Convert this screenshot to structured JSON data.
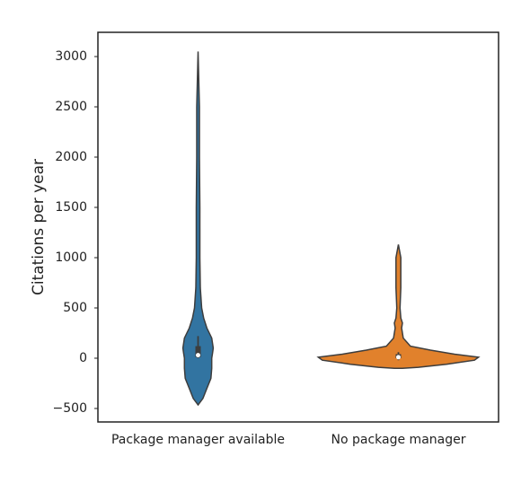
{
  "chart_data": {
    "type": "violin",
    "ylabel": "Citations per year",
    "categories": [
      "Package manager available",
      "No package manager"
    ],
    "ylim": [
      -634,
      3241
    ],
    "yticks": [
      {
        "value": -500,
        "label": "−500"
      },
      0,
      500,
      1000,
      1500,
      2000,
      2500,
      3000
    ],
    "grid": false,
    "violins": [
      {
        "color": "#3274a1",
        "y": [
          -464,
          -400,
          -300,
          -200,
          -100,
          0,
          50,
          100,
          200,
          300,
          400,
          500,
          700,
          1000,
          1500,
          2000,
          2500,
          3050
        ],
        "density": [
          0,
          0.06,
          0.11,
          0.16,
          0.17,
          0.17,
          0.18,
          0.19,
          0.17,
          0.11,
          0.07,
          0.045,
          0.028,
          0.022,
          0.022,
          0.017,
          0.017,
          0
        ],
        "whisker_low": 0,
        "q1": 10,
        "median": 30,
        "q3": 120,
        "whisker_high": 220
      },
      {
        "color": "#e1812c",
        "y": [
          -100,
          -90,
          -60,
          -20,
          10,
          40,
          80,
          120,
          200,
          300,
          350,
          400,
          500,
          700,
          900,
          1000,
          1130
        ],
        "density": [
          0.05,
          0.25,
          0.6,
          0.95,
          1.0,
          0.7,
          0.4,
          0.15,
          0.06,
          0.04,
          0.05,
          0.03,
          0.02,
          0.03,
          0.03,
          0.03,
          0
        ],
        "whisker_low": -20,
        "q1": 0,
        "median": 10,
        "q3": 40,
        "whisker_high": 60
      }
    ]
  }
}
